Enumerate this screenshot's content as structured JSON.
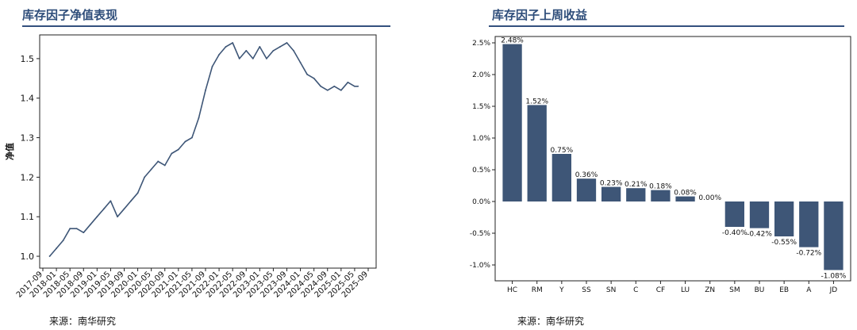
{
  "panels": {
    "left": {
      "title": "库存因子净值表现",
      "source": "来源：南华研究"
    },
    "right": {
      "title": "库存因子上周收益",
      "source": "来源：南华研究"
    }
  },
  "colors": {
    "line": "#3e5677",
    "bar": "#3e5677",
    "title": "#2e4d7a",
    "rule": "#33507e"
  },
  "chart_data": [
    {
      "type": "line",
      "title": "库存因子净值表现",
      "xlabel": "",
      "ylabel": "净值",
      "ylim": [
        0.97,
        1.56
      ],
      "yticks": [
        1.0,
        1.1,
        1.2,
        1.3,
        1.4,
        1.5
      ],
      "ytick_labels": [
        "1.0",
        "1.1",
        "1.2",
        "1.3",
        "1.4",
        "1.5"
      ],
      "xtick_labels": [
        "2017-09",
        "2018-01",
        "2018-05",
        "2018-09",
        "2019-01",
        "2019-05",
        "2019-09",
        "2020-01",
        "2020-05",
        "2020-09",
        "2021-01",
        "2021-05",
        "2021-09",
        "2022-01",
        "2022-05",
        "2022-09",
        "2023-01",
        "2023-05",
        "2023-09",
        "2024-01",
        "2024-05",
        "2024-09",
        "2025-01",
        "2025-05",
        "2025-09"
      ],
      "x": [
        "2017-11",
        "2018-01",
        "2018-03",
        "2018-05",
        "2018-07",
        "2018-09",
        "2018-11",
        "2019-01",
        "2019-03",
        "2019-05",
        "2019-07",
        "2019-09",
        "2019-11",
        "2020-01",
        "2020-03",
        "2020-05",
        "2020-07",
        "2020-09",
        "2020-11",
        "2021-01",
        "2021-03",
        "2021-05",
        "2021-07",
        "2021-09",
        "2021-11",
        "2022-01",
        "2022-03",
        "2022-05",
        "2022-07",
        "2022-09",
        "2022-11",
        "2023-01",
        "2023-03",
        "2023-05",
        "2023-07",
        "2023-09",
        "2023-11",
        "2024-01",
        "2024-03",
        "2024-05",
        "2024-07",
        "2024-09",
        "2024-11",
        "2025-01",
        "2025-03",
        "2025-05",
        "2025-06"
      ],
      "series": [
        {
          "values": [
            1.0,
            1.02,
            1.04,
            1.07,
            1.07,
            1.06,
            1.08,
            1.1,
            1.12,
            1.14,
            1.1,
            1.12,
            1.14,
            1.16,
            1.2,
            1.22,
            1.24,
            1.23,
            1.26,
            1.27,
            1.29,
            1.3,
            1.35,
            1.42,
            1.48,
            1.51,
            1.53,
            1.54,
            1.5,
            1.52,
            1.5,
            1.53,
            1.5,
            1.52,
            1.53,
            1.54,
            1.52,
            1.49,
            1.46,
            1.45,
            1.43,
            1.42,
            1.43,
            1.42,
            1.44,
            1.43,
            1.43
          ]
        }
      ],
      "grid": false,
      "legend": "none"
    },
    {
      "type": "bar",
      "title": "库存因子上周收益",
      "xlabel": "",
      "ylabel": "",
      "categories": [
        "HC",
        "RM",
        "Y",
        "SS",
        "SN",
        "C",
        "CF",
        "LU",
        "ZN",
        "SM",
        "BU",
        "EB",
        "A",
        "JD"
      ],
      "values": [
        2.48,
        1.52,
        0.75,
        0.36,
        0.23,
        0.21,
        0.18,
        0.08,
        0.0,
        -0.4,
        -0.42,
        -0.55,
        -0.72,
        -1.08
      ],
      "value_labels": [
        "2.48%",
        "1.52%",
        "0.75%",
        "0.36%",
        "0.23%",
        "0.21%",
        "0.18%",
        "0.08%",
        "0.00%",
        "-0.40%",
        "-0.42%",
        "-0.55%",
        "-0.72%",
        "-1.08%"
      ],
      "ylim": [
        -1.25,
        2.6
      ],
      "yticks": [
        -1.0,
        -0.5,
        0.0,
        0.5,
        1.0,
        1.5,
        2.0,
        2.5
      ],
      "ytick_labels": [
        "-1.0%",
        "-0.5%",
        "0.0%",
        "0.5%",
        "1.0%",
        "1.5%",
        "2.0%",
        "2.5%"
      ],
      "grid": false,
      "legend": "none"
    }
  ]
}
